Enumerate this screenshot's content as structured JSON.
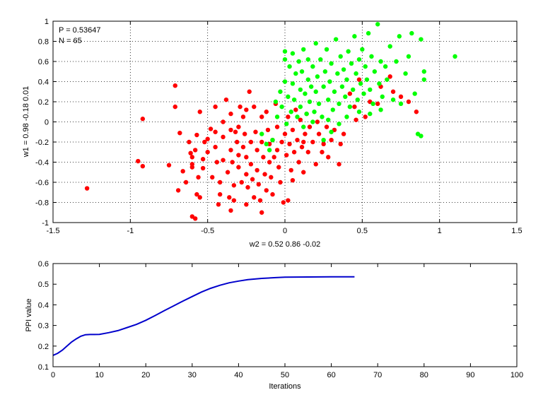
{
  "chart_data": [
    {
      "type": "scatter",
      "xlabel": "w2 = 0.52  0.86  -0.02",
      "ylabel": "w1 = 0.98  -0.18  0.01",
      "xlim": [
        -1.5,
        1.5
      ],
      "ylim": [
        -1,
        1
      ],
      "xticks": [
        "-1.5",
        "-1",
        "-0.5",
        "0",
        "0.5",
        "1",
        "1.5"
      ],
      "yticks": [
        "-1",
        "-0.8",
        "-0.6",
        "-0.4",
        "-0.2",
        "0",
        "0.2",
        "0.4",
        "0.6",
        "0.8",
        "1"
      ],
      "grid": true,
      "annotations": [
        "P = 0.53647",
        "N = 65"
      ],
      "series": [
        {
          "color": "#ff0000",
          "points": [
            [
              -1.28,
              -0.66
            ],
            [
              -0.92,
              0.03
            ],
            [
              -0.95,
              -0.39
            ],
            [
              -0.92,
              -0.44
            ],
            [
              -0.75,
              -0.43
            ],
            [
              -0.71,
              0.15
            ],
            [
              -0.71,
              0.36
            ],
            [
              -0.69,
              -0.68
            ],
            [
              -0.68,
              -0.11
            ],
            [
              -0.66,
              -0.49
            ],
            [
              -0.64,
              -0.6
            ],
            [
              -0.62,
              -0.2
            ],
            [
              -0.61,
              -0.31
            ],
            [
              -0.6,
              -0.35
            ],
            [
              -0.6,
              -0.42
            ],
            [
              -0.58,
              -0.28
            ],
            [
              -0.57,
              -0.13
            ],
            [
              -0.56,
              -0.55
            ],
            [
              -0.55,
              0.1
            ],
            [
              -0.55,
              -0.75
            ],
            [
              -0.57,
              -0.72
            ],
            [
              -0.6,
              -0.94
            ],
            [
              -0.58,
              -0.96
            ],
            [
              -0.53,
              -0.37
            ],
            [
              -0.53,
              -0.46
            ],
            [
              -0.5,
              -0.17
            ],
            [
              -0.5,
              -0.3
            ],
            [
              -0.48,
              -0.07
            ],
            [
              -0.47,
              -0.55
            ],
            [
              -0.45,
              0.15
            ],
            [
              -0.45,
              -0.25
            ],
            [
              -0.44,
              -0.4
            ],
            [
              -0.42,
              -0.6
            ],
            [
              -0.42,
              -0.72
            ],
            [
              -0.4,
              0.0
            ],
            [
              -0.4,
              -0.15
            ],
            [
              -0.4,
              -0.38
            ],
            [
              -0.38,
              0.22
            ],
            [
              -0.37,
              -0.5
            ],
            [
              -0.36,
              -0.75
            ],
            [
              -0.35,
              -0.08
            ],
            [
              -0.35,
              -0.28
            ],
            [
              -0.34,
              -0.4
            ],
            [
              -0.33,
              -0.63
            ],
            [
              -0.33,
              -0.78
            ],
            [
              -0.32,
              -0.1
            ],
            [
              -0.31,
              -0.2
            ],
            [
              -0.3,
              -0.33
            ],
            [
              -0.3,
              -0.45
            ],
            [
              -0.29,
              0.15
            ],
            [
              -0.28,
              -0.6
            ],
            [
              -0.27,
              0.05
            ],
            [
              -0.27,
              -0.25
            ],
            [
              -0.26,
              -0.12
            ],
            [
              -0.25,
              -0.35
            ],
            [
              -0.25,
              -0.52
            ],
            [
              -0.24,
              -0.65
            ],
            [
              -0.23,
              0.3
            ],
            [
              -0.22,
              -0.2
            ],
            [
              -0.22,
              -0.42
            ],
            [
              -0.21,
              -0.57
            ],
            [
              -0.2,
              -0.75
            ],
            [
              -0.2,
              0.15
            ],
            [
              -0.19,
              -0.1
            ],
            [
              -0.18,
              -0.28
            ],
            [
              -0.18,
              -0.48
            ],
            [
              -0.17,
              -0.62
            ],
            [
              -0.16,
              -0.78
            ],
            [
              -0.15,
              0.05
            ],
            [
              -0.15,
              -0.2
            ],
            [
              -0.14,
              -0.35
            ],
            [
              -0.13,
              -0.52
            ],
            [
              -0.12,
              -0.68
            ],
            [
              -0.12,
              0.1
            ],
            [
              -0.11,
              -0.08
            ],
            [
              -0.1,
              -0.22
            ],
            [
              -0.1,
              -0.4
            ],
            [
              -0.09,
              -0.55
            ],
            [
              -0.08,
              -0.18
            ],
            [
              -0.07,
              -0.35
            ],
            [
              -0.06,
              0.18
            ],
            [
              -0.05,
              -0.05
            ],
            [
              -0.05,
              -0.28
            ],
            [
              -0.04,
              -0.45
            ],
            [
              -0.03,
              -0.6
            ],
            [
              -0.02,
              -0.2
            ],
            [
              -0.01,
              -0.8
            ],
            [
              0.0,
              -0.12
            ],
            [
              0.01,
              -0.33
            ],
            [
              0.02,
              0.05
            ],
            [
              0.03,
              -0.22
            ],
            [
              0.04,
              -0.48
            ],
            [
              0.05,
              -0.08
            ],
            [
              0.06,
              -0.3
            ],
            [
              0.07,
              0.12
            ],
            [
              0.08,
              -0.18
            ],
            [
              0.09,
              -0.4
            ],
            [
              0.1,
              0.02
            ],
            [
              0.11,
              -0.25
            ],
            [
              0.12,
              -0.5
            ],
            [
              0.13,
              -0.12
            ],
            [
              0.14,
              0.08
            ],
            [
              0.15,
              -0.3
            ],
            [
              0.16,
              -0.05
            ],
            [
              0.18,
              -0.2
            ],
            [
              0.2,
              -0.42
            ],
            [
              0.21,
              0.0
            ],
            [
              0.22,
              -0.12
            ],
            [
              0.24,
              -0.3
            ],
            [
              0.25,
              -0.22
            ],
            [
              0.27,
              -0.05
            ],
            [
              0.28,
              -0.35
            ],
            [
              0.3,
              -0.18
            ],
            [
              0.32,
              -0.08
            ],
            [
              0.35,
              -0.42
            ],
            [
              0.36,
              -0.22
            ],
            [
              0.38,
              -0.12
            ],
            [
              0.42,
              0.28
            ],
            [
              0.45,
              0.15
            ],
            [
              0.46,
              0.02
            ],
            [
              0.48,
              0.42
            ],
            [
              0.52,
              0.05
            ],
            [
              0.55,
              0.2
            ],
            [
              0.6,
              0.18
            ],
            [
              0.68,
              0.45
            ],
            [
              0.7,
              0.3
            ],
            [
              0.75,
              0.25
            ],
            [
              0.8,
              0.2
            ],
            [
              0.85,
              0.1
            ],
            [
              0.62,
              0.35
            ],
            [
              -0.25,
              0.12
            ],
            [
              -0.3,
              -0.05
            ],
            [
              -0.35,
              0.08
            ],
            [
              -0.45,
              -0.1
            ],
            [
              -0.52,
              -0.2
            ],
            [
              -0.6,
              -0.45
            ],
            [
              -0.43,
              -0.82
            ],
            [
              -0.35,
              -0.88
            ],
            [
              -0.25,
              -0.82
            ],
            [
              -0.15,
              -0.9
            ],
            [
              0.05,
              -0.58
            ],
            [
              0.12,
              -0.2
            ],
            [
              -0.08,
              -0.72
            ],
            [
              0.02,
              -0.78
            ]
          ]
        },
        {
          "color": "#00ff00",
          "points": [
            [
              -0.15,
              -0.12
            ],
            [
              -0.12,
              -0.22
            ],
            [
              -0.1,
              -0.28
            ],
            [
              -0.08,
              -0.18
            ],
            [
              -0.06,
              0.2
            ],
            [
              -0.05,
              0.05
            ],
            [
              -0.03,
              0.3
            ],
            [
              -0.02,
              0.15
            ],
            [
              0.0,
              0.4
            ],
            [
              0.0,
              0.62
            ],
            [
              0.0,
              0.7
            ],
            [
              0.01,
              -0.02
            ],
            [
              0.02,
              0.25
            ],
            [
              0.03,
              0.55
            ],
            [
              0.04,
              0.1
            ],
            [
              0.05,
              0.68
            ],
            [
              0.05,
              0.38
            ],
            [
              0.06,
              0.22
            ],
            [
              0.07,
              0.48
            ],
            [
              0.08,
              0.05
            ],
            [
              0.09,
              0.6
            ],
            [
              0.1,
              0.32
            ],
            [
              0.1,
              0.15
            ],
            [
              0.11,
              0.5
            ],
            [
              0.12,
              0.72
            ],
            [
              0.13,
              0.28
            ],
            [
              0.14,
              0.08
            ],
            [
              0.15,
              0.42
            ],
            [
              0.15,
              0.62
            ],
            [
              0.16,
              0.2
            ],
            [
              0.17,
              0.35
            ],
            [
              0.18,
              0.55
            ],
            [
              0.19,
              0.1
            ],
            [
              0.2,
              0.78
            ],
            [
              0.2,
              0.3
            ],
            [
              0.21,
              0.45
            ],
            [
              0.22,
              0.18
            ],
            [
              0.23,
              0.62
            ],
            [
              0.24,
              0.05
            ],
            [
              0.25,
              0.35
            ],
            [
              0.26,
              0.5
            ],
            [
              0.27,
              0.72
            ],
            [
              0.28,
              0.22
            ],
            [
              0.29,
              0.4
            ],
            [
              0.3,
              0.58
            ],
            [
              0.31,
              0.12
            ],
            [
              0.32,
              0.3
            ],
            [
              0.33,
              0.82
            ],
            [
              0.34,
              0.48
            ],
            [
              0.35,
              0.18
            ],
            [
              0.36,
              0.65
            ],
            [
              0.37,
              0.35
            ],
            [
              0.38,
              0.52
            ],
            [
              0.39,
              0.25
            ],
            [
              0.4,
              0.42
            ],
            [
              0.41,
              0.7
            ],
            [
              0.42,
              0.15
            ],
            [
              0.43,
              0.58
            ],
            [
              0.44,
              0.32
            ],
            [
              0.45,
              0.85
            ],
            [
              0.46,
              0.48
            ],
            [
              0.47,
              0.22
            ],
            [
              0.48,
              0.62
            ],
            [
              0.49,
              0.38
            ],
            [
              0.5,
              0.72
            ],
            [
              0.51,
              0.28
            ],
            [
              0.52,
              0.55
            ],
            [
              0.53,
              0.42
            ],
            [
              0.54,
              0.88
            ],
            [
              0.55,
              0.32
            ],
            [
              0.56,
              0.65
            ],
            [
              0.57,
              0.18
            ],
            [
              0.58,
              0.5
            ],
            [
              0.6,
              0.97
            ],
            [
              0.61,
              0.38
            ],
            [
              0.62,
              0.6
            ],
            [
              0.63,
              0.25
            ],
            [
              0.65,
              0.55
            ],
            [
              0.66,
              0.42
            ],
            [
              0.68,
              0.75
            ],
            [
              0.7,
              0.22
            ],
            [
              0.72,
              0.6
            ],
            [
              0.74,
              0.85
            ],
            [
              0.75,
              0.18
            ],
            [
              0.78,
              0.48
            ],
            [
              0.8,
              0.65
            ],
            [
              0.82,
              0.88
            ],
            [
              0.84,
              0.28
            ],
            [
              0.86,
              -0.12
            ],
            [
              0.88,
              -0.14
            ],
            [
              0.9,
              0.42
            ],
            [
              0.88,
              0.82
            ],
            [
              0.9,
              0.5
            ],
            [
              1.1,
              0.65
            ],
            [
              0.62,
              0.12
            ],
            [
              0.55,
              0.08
            ],
            [
              0.48,
              0.1
            ],
            [
              0.4,
              0.05
            ],
            [
              0.35,
              -0.02
            ],
            [
              0.3,
              -0.1
            ],
            [
              0.25,
              -0.18
            ],
            [
              0.28,
              0.02
            ],
            [
              0.18,
              0.0
            ],
            [
              0.12,
              -0.05
            ]
          ]
        }
      ]
    },
    {
      "type": "line",
      "xlabel": "Iterations",
      "ylabel": "PPI value",
      "xlim": [
        0,
        100
      ],
      "ylim": [
        0.1,
        0.6
      ],
      "xticks": [
        "0",
        "10",
        "20",
        "30",
        "40",
        "50",
        "60",
        "70",
        "80",
        "90",
        "100"
      ],
      "yticks": [
        "0.1",
        "0.2",
        "0.3",
        "0.4",
        "0.5",
        "0.6"
      ],
      "grid": false,
      "series": [
        {
          "color": "#0000cc",
          "x": [
            0,
            1,
            2,
            3,
            4,
            5,
            6,
            7,
            8,
            9,
            10,
            12,
            14,
            16,
            18,
            20,
            22,
            24,
            26,
            28,
            30,
            32,
            34,
            36,
            38,
            40,
            42,
            45,
            48,
            50,
            55,
            60,
            65
          ],
          "y": [
            0.155,
            0.165,
            0.18,
            0.2,
            0.22,
            0.235,
            0.248,
            0.255,
            0.256,
            0.256,
            0.257,
            0.265,
            0.275,
            0.29,
            0.305,
            0.325,
            0.348,
            0.372,
            0.395,
            0.418,
            0.44,
            0.462,
            0.48,
            0.495,
            0.507,
            0.515,
            0.522,
            0.528,
            0.532,
            0.534,
            0.535,
            0.536,
            0.536
          ]
        }
      ]
    }
  ]
}
